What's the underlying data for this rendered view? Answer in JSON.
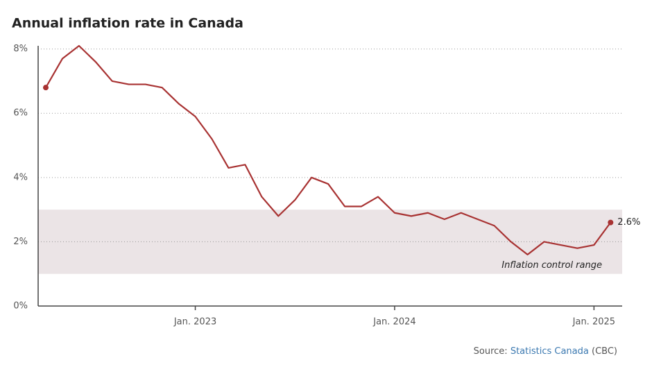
{
  "chart_data": {
    "type": "line",
    "title": "Annual inflation rate in Canada",
    "x": [
      "2022-04",
      "2022-05",
      "2022-06",
      "2022-07",
      "2022-08",
      "2022-09",
      "2022-10",
      "2022-11",
      "2022-12",
      "2023-01",
      "2023-02",
      "2023-03",
      "2023-04",
      "2023-05",
      "2023-06",
      "2023-07",
      "2023-08",
      "2023-09",
      "2023-10",
      "2023-11",
      "2023-12",
      "2024-01",
      "2024-02",
      "2024-03",
      "2024-04",
      "2024-05",
      "2024-06",
      "2024-07",
      "2024-08",
      "2024-09",
      "2024-10",
      "2024-11",
      "2024-12",
      "2025-01",
      "2025-02"
    ],
    "series": [
      {
        "color": "#a83232",
        "values": [
          6.8,
          7.7,
          8.1,
          7.6,
          7.0,
          6.9,
          6.9,
          6.8,
          6.3,
          5.9,
          5.2,
          4.3,
          4.4,
          3.4,
          2.8,
          3.3,
          4.0,
          3.8,
          3.1,
          3.1,
          3.4,
          2.9,
          2.8,
          2.9,
          2.7,
          2.9,
          2.7,
          2.5,
          2.0,
          1.6,
          2.0,
          1.9,
          1.8,
          1.9,
          2.6
        ],
        "value_labels": [
          null,
          null,
          null,
          null,
          null,
          null,
          null,
          null,
          null,
          null,
          null,
          null,
          null,
          null,
          null,
          null,
          null,
          null,
          null,
          null,
          null,
          null,
          null,
          null,
          null,
          null,
          null,
          null,
          null,
          null,
          null,
          null,
          null,
          null,
          "2.6%"
        ]
      }
    ],
    "ylim": [
      0,
      8.1
    ],
    "yticks": [
      {
        "value": 0,
        "label": "0%"
      },
      {
        "value": 2,
        "label": "2%"
      },
      {
        "value": 4,
        "label": "4%"
      },
      {
        "value": 6,
        "label": "6%"
      },
      {
        "value": 8,
        "label": "8%"
      }
    ],
    "xticks": [
      {
        "value": "2023-01",
        "label": "Jan. 2023"
      },
      {
        "value": "2024-01",
        "label": "Jan. 2024"
      },
      {
        "value": "2025-01",
        "label": "Jan. 2025"
      }
    ],
    "grid": true,
    "band": {
      "range": [
        1,
        3
      ],
      "color": "#ebe4e6",
      "label": "Inflation control range"
    },
    "source": {
      "prefix": "Source:",
      "name": "Statistics Canada",
      "suffix": "(CBC)"
    }
  }
}
